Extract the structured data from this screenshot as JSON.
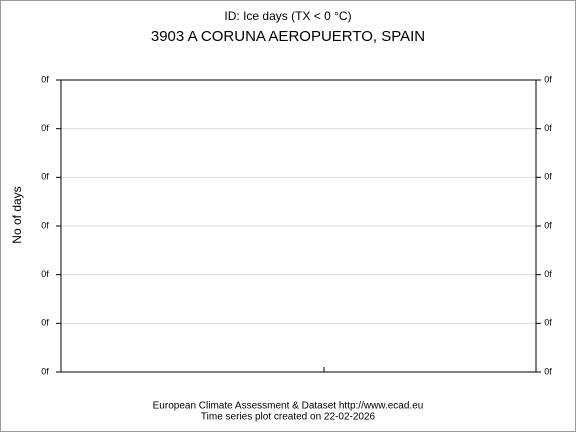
{
  "chart_data": {
    "type": "line",
    "title": "ID: Ice days (TX < 0 °C)",
    "subtitle": "3903 A CORUNA AEROPUERTO, SPAIN",
    "y_label": "No of days",
    "footer": [
      "European Climate Assessment & Dataset  http://www.ecad.eu",
      "Time series plot created on 22-02-2026"
    ],
    "ylim": [
      0,
      6
    ],
    "yticks": [
      {
        "value": 0,
        "label": "0f"
      },
      {
        "value": 1,
        "label": "0f"
      },
      {
        "value": 2,
        "label": "0f"
      },
      {
        "value": 3,
        "label": "0f"
      },
      {
        "value": 4,
        "label": "0f"
      },
      {
        "value": 5,
        "label": "0f"
      },
      {
        "value": 6,
        "label": "0f"
      }
    ],
    "grid": true,
    "series": []
  }
}
